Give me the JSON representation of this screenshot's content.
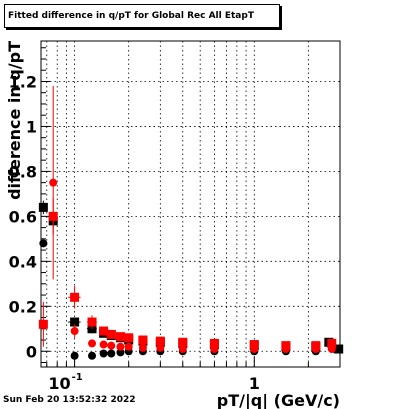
{
  "chart_data": {
    "type": "scatter",
    "title": "Fitted difference in q/pT for Global Rec All EtapT",
    "xlabel": "pT/|q| (GeV/c)",
    "ylabel": "difference in q/pT",
    "xscale": "log",
    "xlim": [
      0.065,
      3.0
    ],
    "ylim": [
      -0.07,
      1.38
    ],
    "grid": true,
    "x_ticks": [
      {
        "value": 0.1,
        "label": "10^{-1}"
      },
      {
        "value": 1,
        "label": "1"
      }
    ],
    "y_ticks": [
      0,
      0.2,
      0.4,
      0.6,
      0.8,
      1,
      1.2
    ],
    "y_tick_labels": [
      "0",
      "0.2",
      "0.4",
      "0.6",
      "0.8",
      "1",
      "1.2"
    ],
    "series": [
      {
        "color": "#000000",
        "marker": "circle",
        "points": [
          {
            "x": 0.067,
            "y": 0.48
          },
          {
            "x": 0.076,
            "y": 0.59
          },
          {
            "x": 0.1,
            "y": -0.02
          },
          {
            "x": 0.125,
            "y": -0.02
          },
          {
            "x": 0.145,
            "y": -0.01
          },
          {
            "x": 0.16,
            "y": -0.01
          },
          {
            "x": 0.18,
            "y": -0.005
          },
          {
            "x": 0.2,
            "y": 0.0
          },
          {
            "x": 0.24,
            "y": 0.0
          },
          {
            "x": 0.3,
            "y": 0.0
          },
          {
            "x": 0.4,
            "y": 0.0
          },
          {
            "x": 0.6,
            "y": 0.0
          },
          {
            "x": 1.0,
            "y": 0.0
          },
          {
            "x": 1.5,
            "y": 0.0
          },
          {
            "x": 2.2,
            "y": 0.0
          },
          {
            "x": 2.8,
            "y": 0.01
          }
        ]
      },
      {
        "color": "#000000",
        "marker": "square",
        "points": [
          {
            "x": 0.067,
            "y": 0.64,
            "xerr": 0.003,
            "yerr": 0.03
          },
          {
            "x": 0.076,
            "y": 0.58,
            "xerr": 0.003,
            "yerr": 0.03
          },
          {
            "x": 0.1,
            "y": 0.13,
            "xerr": 0.008,
            "yerr": 0.02
          },
          {
            "x": 0.125,
            "y": 0.1,
            "xerr": 0.008,
            "yerr": 0.02
          },
          {
            "x": 0.145,
            "y": 0.08
          },
          {
            "x": 0.16,
            "y": 0.07
          },
          {
            "x": 0.18,
            "y": 0.06
          },
          {
            "x": 0.2,
            "y": 0.05
          },
          {
            "x": 0.24,
            "y": 0.045
          },
          {
            "x": 0.3,
            "y": 0.04
          },
          {
            "x": 0.4,
            "y": 0.035
          },
          {
            "x": 0.6,
            "y": 0.03
          },
          {
            "x": 1.0,
            "y": 0.025
          },
          {
            "x": 1.5,
            "y": 0.02
          },
          {
            "x": 2.2,
            "y": 0.02
          },
          {
            "x": 2.6,
            "y": 0.04
          },
          {
            "x": 2.95,
            "y": 0.01
          }
        ]
      },
      {
        "color": "#ff0000",
        "marker": "circle",
        "points": [
          {
            "x": 0.076,
            "y": 0.75,
            "yerr": 0.43
          },
          {
            "x": 0.1,
            "y": 0.09,
            "yerr": 0.03
          },
          {
            "x": 0.125,
            "y": 0.035
          },
          {
            "x": 0.145,
            "y": 0.03
          },
          {
            "x": 0.16,
            "y": 0.025
          },
          {
            "x": 0.18,
            "y": 0.02
          },
          {
            "x": 0.2,
            "y": 0.02
          },
          {
            "x": 0.24,
            "y": 0.015
          },
          {
            "x": 0.3,
            "y": 0.015
          },
          {
            "x": 0.4,
            "y": 0.01
          },
          {
            "x": 0.6,
            "y": 0.01
          },
          {
            "x": 1.0,
            "y": 0.01
          },
          {
            "x": 1.5,
            "y": 0.01
          },
          {
            "x": 2.2,
            "y": 0.01
          },
          {
            "x": 2.7,
            "y": 0.01
          }
        ]
      },
      {
        "color": "#ff0000",
        "marker": "square",
        "points": [
          {
            "x": 0.067,
            "y": 0.12,
            "xerr": 0.003,
            "yerr": 0.1
          },
          {
            "x": 0.076,
            "y": 0.6,
            "xerr": 0.003,
            "yerr": 0.08
          },
          {
            "x": 0.1,
            "y": 0.24,
            "xerr": 0.008,
            "yerr": 0.05
          },
          {
            "x": 0.125,
            "y": 0.13,
            "xerr": 0.008,
            "yerr": 0.03
          },
          {
            "x": 0.145,
            "y": 0.09
          },
          {
            "x": 0.16,
            "y": 0.075
          },
          {
            "x": 0.18,
            "y": 0.065
          },
          {
            "x": 0.2,
            "y": 0.06
          },
          {
            "x": 0.24,
            "y": 0.05
          },
          {
            "x": 0.3,
            "y": 0.045
          },
          {
            "x": 0.4,
            "y": 0.04
          },
          {
            "x": 0.6,
            "y": 0.035
          },
          {
            "x": 1.0,
            "y": 0.03
          },
          {
            "x": 1.5,
            "y": 0.025
          },
          {
            "x": 2.2,
            "y": 0.025
          },
          {
            "x": 2.7,
            "y": 0.035
          }
        ]
      }
    ]
  },
  "footer": {
    "timestamp": "Sun Feb 20 13:52:32 2022"
  }
}
